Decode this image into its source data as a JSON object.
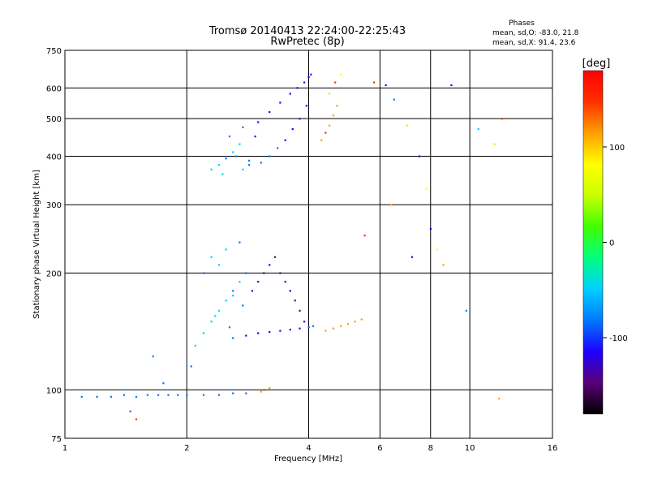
{
  "chart_data": {
    "type": "scatter",
    "title": "Tromsø 20140413 22:24:00-22:25:43",
    "subtitle": "RwPretec (8p)",
    "stats": {
      "heading": "Phases",
      "line_o": "mean, sd,O: -83.0, 21.8",
      "line_x": "mean, sd,X:  91.4, 23.6"
    },
    "xlabel": "Frequency [MHz]",
    "ylabel": "Stationary phase Virtual Height [km]",
    "x_scale": "log",
    "y_scale": "log",
    "xlim": [
      1,
      16
    ],
    "ylim": [
      75,
      750
    ],
    "x_ticks": [
      1,
      2,
      4,
      6,
      8,
      10,
      16
    ],
    "x_tick_labels": [
      "1",
      "2",
      "4",
      "6",
      "8",
      "10",
      "16"
    ],
    "y_ticks": [
      75,
      100,
      200,
      300,
      400,
      500,
      600,
      750
    ],
    "y_tick_labels": [
      "75",
      "100",
      "200",
      "300",
      "400",
      "500",
      "600",
      "750"
    ],
    "grid": true,
    "colorbar": {
      "label": "[deg]",
      "range": [
        -180,
        180
      ],
      "ticks": [
        -100,
        0,
        100
      ],
      "tick_labels": [
        "-100",
        "0",
        "100"
      ],
      "colors": [
        "#000000",
        "#5a0078",
        "#1e00ff",
        "#0078ff",
        "#00d0ff",
        "#00ff80",
        "#40ff00",
        "#c8ff00",
        "#ffff00",
        "#ffa000",
        "#ff3000",
        "#ff0000"
      ]
    },
    "series": [
      {
        "x": [
          1.1,
          1.2,
          1.3,
          1.4,
          1.5,
          1.6,
          1.7,
          1.8,
          1.9,
          2.0,
          2.2,
          2.4,
          2.6,
          2.8
        ],
        "y": [
          96,
          96,
          96,
          97,
          96,
          97,
          97,
          97,
          97,
          97,
          97,
          97,
          98,
          98
        ],
        "phase": [
          -80,
          -80,
          -82,
          -78,
          -85,
          -80,
          -75,
          -82,
          -80,
          -78,
          -82,
          -85,
          -80,
          -78
        ]
      },
      {
        "x": [
          2.75,
          2.85,
          3.05,
          3.2,
          3.35,
          3.5,
          3.65,
          3.8,
          3.95
        ],
        "y": [
          370,
          380,
          385,
          400,
          420,
          440,
          470,
          500,
          540
        ],
        "phase": [
          -65,
          -85,
          -90,
          -95,
          -98,
          -100,
          -103,
          -105,
          -108
        ]
      },
      {
        "x": [
          2.3,
          2.4,
          2.5,
          2.6,
          2.7,
          2.55,
          2.75,
          2.65,
          2.45,
          2.85,
          2.95
        ],
        "y": [
          370,
          380,
          395,
          410,
          430,
          450,
          475,
          400,
          360,
          390,
          450
        ],
        "phase": [
          -55,
          -60,
          -70,
          -65,
          -50,
          -75,
          -80,
          -70,
          -60,
          -90,
          -100
        ]
      },
      {
        "x": [
          3.0,
          3.2,
          3.4,
          3.6,
          3.75,
          3.9,
          4.0,
          4.05
        ],
        "y": [
          490,
          520,
          550,
          580,
          600,
          620,
          640,
          650
        ],
        "phase": [
          -110,
          -120,
          -115,
          -118,
          -112,
          -105,
          -100,
          -110
        ]
      },
      {
        "x": [
          4.3,
          4.4,
          4.5,
          4.6,
          4.7,
          4.5,
          4.65,
          4.8
        ],
        "y": [
          440,
          460,
          480,
          510,
          540,
          580,
          620,
          650
        ],
        "phase": [
          120,
          140,
          110,
          100,
          130,
          60,
          150,
          90
        ]
      },
      {
        "x": [
          2.1,
          2.2,
          2.3,
          2.4,
          2.5,
          2.6,
          2.7,
          2.8,
          2.3,
          2.5,
          2.7,
          2.2,
          2.4,
          2.6,
          2.35,
          2.55,
          2.75
        ],
        "y": [
          130,
          140,
          150,
          160,
          170,
          180,
          190,
          200,
          220,
          230,
          240,
          200,
          210,
          175,
          155,
          145,
          165
        ],
        "phase": [
          -50,
          -60,
          -55,
          -45,
          -65,
          -70,
          -60,
          -80,
          -55,
          -65,
          -70,
          -75,
          -50,
          -60,
          -65,
          -70,
          -75
        ]
      },
      {
        "x": [
          2.9,
          3.0,
          3.1,
          3.2,
          3.3,
          3.4,
          3.5,
          3.6,
          3.7,
          3.8,
          3.9,
          4.0
        ],
        "y": [
          180,
          190,
          200,
          210,
          220,
          200,
          190,
          180,
          170,
          160,
          150,
          145
        ],
        "phase": [
          -130,
          -140,
          -135,
          -125,
          -140,
          -145,
          -140,
          -130,
          -135,
          -140,
          -130,
          -125
        ]
      },
      {
        "x": [
          2.6,
          2.8,
          3.0,
          3.2,
          3.4,
          3.6,
          3.8,
          4.0,
          4.1
        ],
        "y": [
          136,
          138,
          140,
          141,
          142,
          143,
          144,
          145,
          146
        ],
        "phase": [
          -95,
          -100,
          -105,
          -100,
          -110,
          -105,
          -100,
          -95,
          -98
        ]
      },
      {
        "x": [
          4.4,
          4.6,
          4.8,
          5.0,
          5.2,
          5.4
        ],
        "y": [
          142,
          144,
          146,
          148,
          150,
          152
        ],
        "phase": [
          130,
          120,
          110,
          115,
          100,
          105
        ]
      },
      {
        "x": [
          5.8,
          6.2,
          6.5,
          7.0,
          7.5,
          7.8,
          8.0,
          8.3,
          8.6,
          9.0,
          10.5,
          11.5,
          12.0,
          6.4,
          7.2,
          5.5,
          9.8,
          11.8
        ],
        "y": [
          620,
          610,
          560,
          480,
          400,
          330,
          260,
          230,
          210,
          610,
          470,
          430,
          500,
          300,
          220,
          250,
          160,
          95
        ],
        "phase": [
          160,
          -110,
          -90,
          60,
          -100,
          80,
          -110,
          90,
          100,
          -130,
          -60,
          40,
          150,
          130,
          -110,
          140,
          -70,
          120
        ]
      },
      {
        "x": [
          3.05,
          3.1,
          3.2,
          1.45,
          1.5,
          2.05,
          1.65,
          1.75
        ],
        "y": [
          99,
          100,
          101,
          88,
          84,
          115,
          122,
          104
        ],
        "phase": [
          130,
          140,
          120,
          -80,
          160,
          -70,
          -80,
          -90
        ]
      }
    ]
  }
}
